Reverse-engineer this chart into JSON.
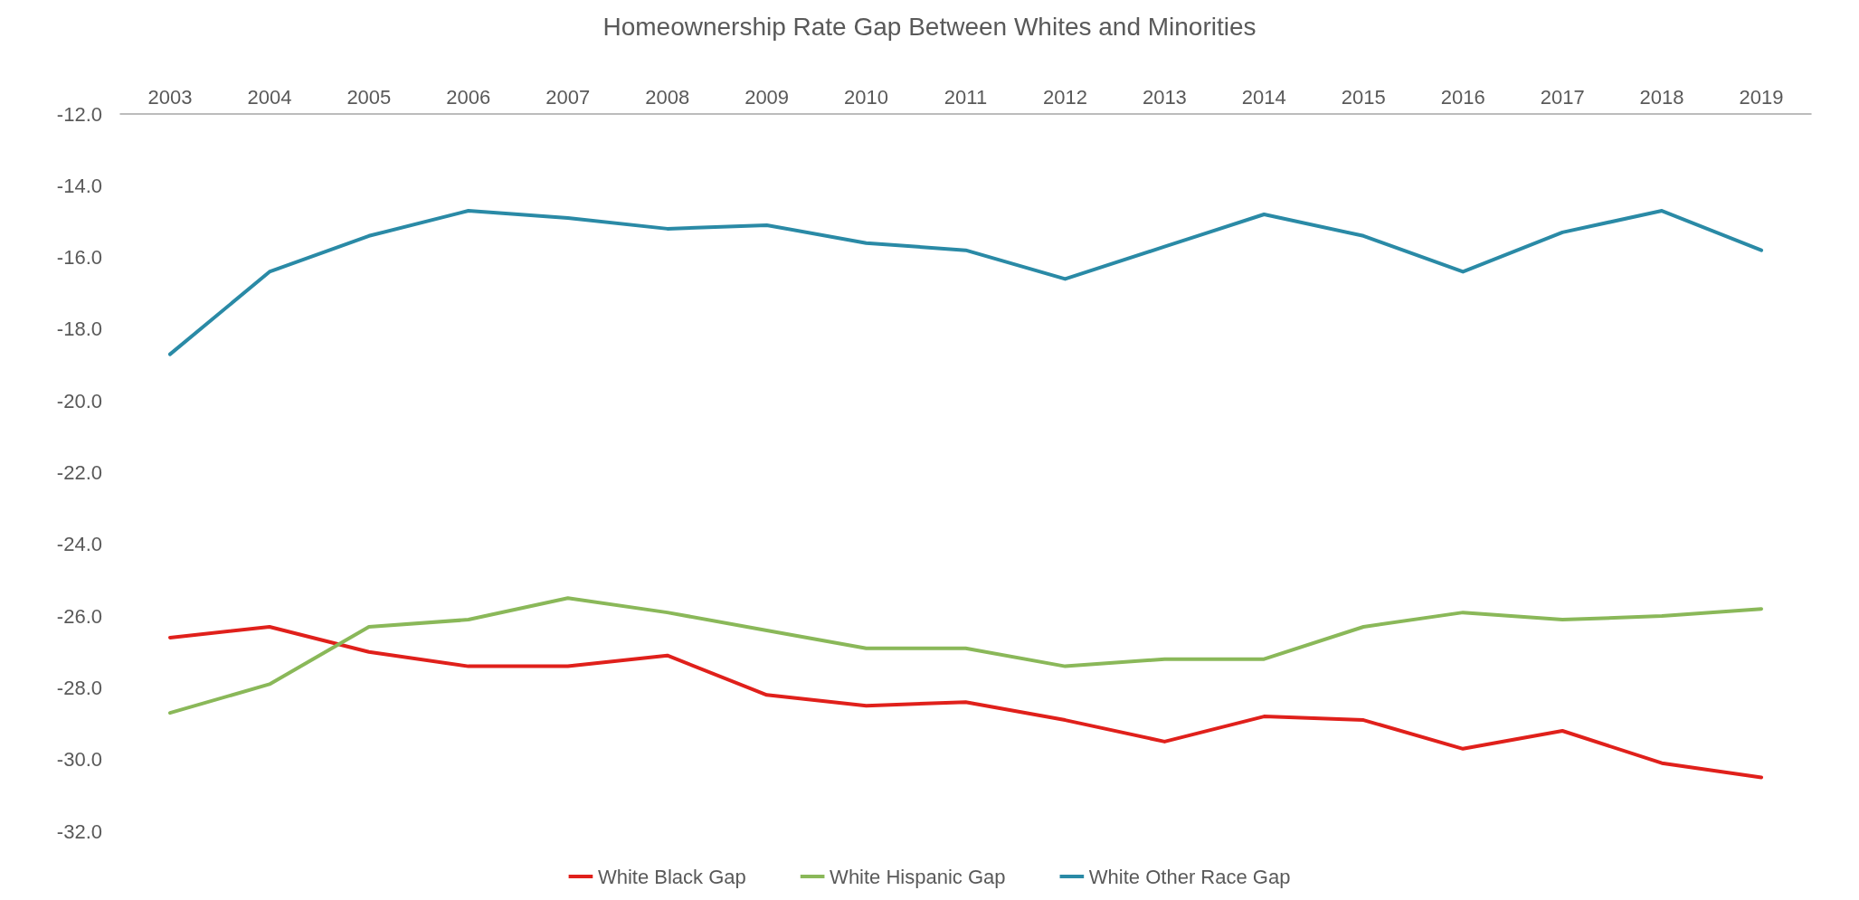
{
  "chart_data": {
    "type": "line",
    "title": "Homeownership Rate Gap Between Whites and Minorities",
    "categories": [
      "2003",
      "2004",
      "2005",
      "2006",
      "2007",
      "2008",
      "2009",
      "2010",
      "2011",
      "2012",
      "2013",
      "2014",
      "2015",
      "2016",
      "2017",
      "2018",
      "2019"
    ],
    "series": [
      {
        "name": "White Black Gap",
        "color": "#e0201b",
        "values": [
          -26.6,
          -26.3,
          -27.0,
          -27.4,
          -27.4,
          -27.1,
          -28.2,
          -28.5,
          -28.4,
          -28.9,
          -29.5,
          -28.8,
          -28.9,
          -29.7,
          -29.2,
          -30.1,
          -30.5
        ]
      },
      {
        "name": "White Hispanic Gap",
        "color": "#8ab859",
        "values": [
          -28.7,
          -27.9,
          -26.3,
          -26.1,
          -25.5,
          -25.9,
          -26.4,
          -26.9,
          -26.9,
          -27.4,
          -27.2,
          -27.2,
          -26.3,
          -25.9,
          -26.1,
          -26.0,
          -25.8
        ]
      },
      {
        "name": "White Other Race Gap",
        "color": "#2a8aa6",
        "values": [
          -18.7,
          -16.4,
          -15.4,
          -14.7,
          -14.9,
          -15.2,
          -15.1,
          -15.6,
          -15.8,
          -16.6,
          -15.7,
          -14.8,
          -15.4,
          -16.4,
          -15.3,
          -14.7,
          -15.8
        ]
      }
    ],
    "ylim": [
      -32,
      -12
    ],
    "yticks": [
      {
        "value": -12,
        "label": "-12.0"
      },
      {
        "value": -14,
        "label": "-14.0"
      },
      {
        "value": -16,
        "label": "-16.0"
      },
      {
        "value": -18,
        "label": "-18.0"
      },
      {
        "value": -20,
        "label": "-20.0"
      },
      {
        "value": -22,
        "label": "-22.0"
      },
      {
        "value": -24,
        "label": "-24.0"
      },
      {
        "value": -26,
        "label": "-26.0"
      },
      {
        "value": -28,
        "label": "-28.0"
      },
      {
        "value": -30,
        "label": "-30.0"
      },
      {
        "value": -32,
        "label": "-32.0"
      }
    ],
    "grid": false,
    "legend": "bottom",
    "marker": "none",
    "line_style": "solid"
  }
}
